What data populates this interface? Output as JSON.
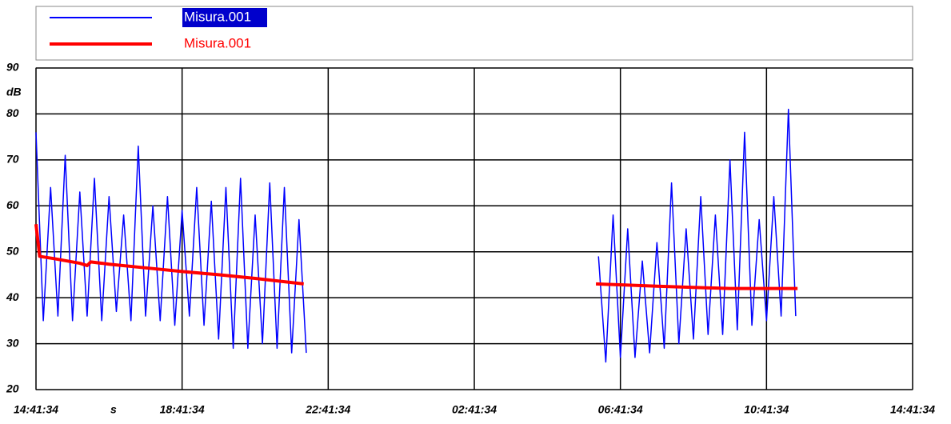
{
  "chart_data": {
    "type": "line",
    "y_label": "dB",
    "x_label": "s",
    "xlim": [
      0,
      24
    ],
    "xticks": [
      {
        "value": 0,
        "label": "14:41:34"
      },
      {
        "value": 4,
        "label": "18:41:34"
      },
      {
        "value": 8,
        "label": "22:41:34"
      },
      {
        "value": 12,
        "label": "02:41:34"
      },
      {
        "value": 16,
        "label": "06:41:34"
      },
      {
        "value": 20,
        "label": "10:41:34"
      },
      {
        "value": 24,
        "label": "14:41:34"
      }
    ],
    "ylim": [
      20,
      90
    ],
    "yticks": [
      20,
      30,
      40,
      50,
      60,
      70,
      80,
      90
    ],
    "grid": true,
    "series": [
      {
        "name": "Misura.001",
        "color": "#0000ff",
        "x": [
          0,
          0.2,
          0.4,
          0.6,
          0.8,
          1.0,
          1.2,
          1.4,
          1.6,
          1.8,
          2.0,
          2.2,
          2.4,
          2.6,
          2.8,
          3.0,
          3.2,
          3.4,
          3.6,
          3.8,
          4.0,
          4.2,
          4.4,
          4.6,
          4.8,
          5.0,
          5.2,
          5.4,
          5.6,
          5.8,
          6.0,
          6.2,
          6.4,
          6.6,
          6.8,
          7.0,
          7.2,
          7.4,
          11.5,
          15.4,
          15.6,
          15.8,
          16.0,
          16.2,
          16.4,
          16.6,
          16.8,
          17.0,
          17.2,
          17.4,
          17.6,
          17.8,
          18.0,
          18.2,
          18.4,
          18.6,
          18.8,
          19.0,
          19.2,
          19.4,
          19.6,
          19.8,
          20.0,
          20.2,
          20.4,
          20.6,
          20.8
        ],
        "values": [
          76,
          35,
          64,
          36,
          71,
          35,
          63,
          36,
          66,
          35,
          62,
          37,
          58,
          35,
          73,
          36,
          60,
          35,
          62,
          34,
          59,
          36,
          64,
          34,
          61,
          31,
          64,
          29,
          66,
          29,
          58,
          30,
          65,
          29,
          64,
          28,
          57,
          28,
          null,
          49,
          26,
          58,
          27,
          55,
          27,
          48,
          28,
          52,
          29,
          65,
          30,
          55,
          31,
          62,
          32,
          58,
          32,
          70,
          33,
          76,
          34,
          57,
          35,
          62,
          36,
          81,
          36
        ]
      },
      {
        "name": "Misura.001",
        "color": "#ff0000",
        "x": [
          0,
          0.1,
          0.5,
          1.2,
          1.4,
          1.5,
          2,
          3,
          4,
          5,
          6,
          7.33,
          11.5,
          15.33,
          17,
          19,
          20.85
        ],
        "values": [
          56,
          49,
          48.5,
          47.5,
          47,
          47.8,
          47.3,
          46.5,
          45.7,
          45,
          44.2,
          43,
          null,
          43,
          42.5,
          42,
          42
        ]
      }
    ]
  }
}
